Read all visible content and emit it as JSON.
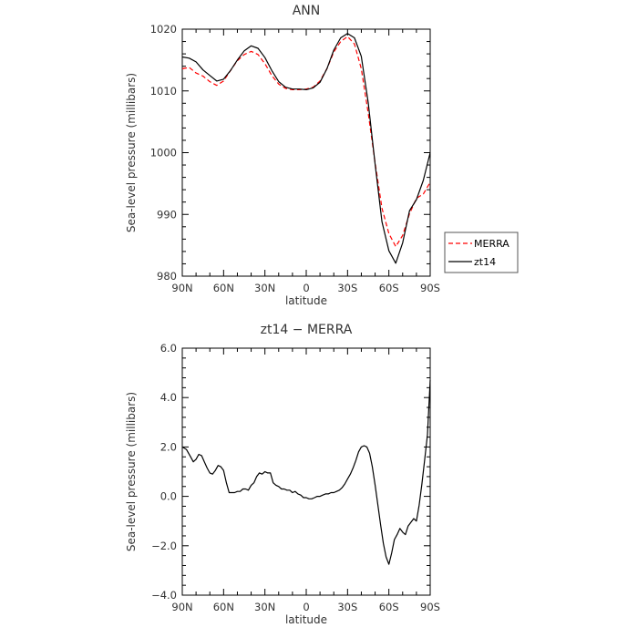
{
  "chart_data": [
    {
      "type": "line",
      "title": "ANN",
      "xlabel": "latitude",
      "ylabel": "Sea-level pressure (millibars)",
      "xlim": [
        90,
        -90
      ],
      "ylim": [
        980,
        1020
      ],
      "x_ticks": [
        "90N",
        "60N",
        "30N",
        "0",
        "30S",
        "60S",
        "90S"
      ],
      "y_ticks": [
        "980",
        "990",
        "1000",
        "1010",
        "1020"
      ],
      "legend": {
        "position": "right",
        "entries": [
          "MERRA",
          "zt14"
        ]
      },
      "series": [
        {
          "name": "MERRA",
          "color": "#ff0000",
          "dash": "dashed",
          "x": [
            90,
            85,
            80,
            75,
            70,
            65,
            60,
            55,
            50,
            45,
            40,
            35,
            30,
            25,
            20,
            15,
            10,
            5,
            0,
            -5,
            -10,
            -15,
            -20,
            -25,
            -30,
            -35,
            -40,
            -45,
            -50,
            -55,
            -60,
            -65,
            -70,
            -75,
            -80,
            -85,
            -90
          ],
          "y": [
            1013.6,
            1013.8,
            1012.9,
            1012.4,
            1011.5,
            1010.9,
            1011.6,
            1013.3,
            1014.9,
            1015.9,
            1016.4,
            1015.9,
            1014.4,
            1012.5,
            1011.1,
            1010.4,
            1010.2,
            1010.2,
            1010.3,
            1010.6,
            1011.6,
            1013.6,
            1016.3,
            1018.0,
            1018.8,
            1017.6,
            1013.6,
            1006.4,
            998.3,
            991.0,
            986.9,
            984.8,
            986.6,
            990.1,
            992.6,
            993.3,
            995.2
          ]
        },
        {
          "name": "zt14",
          "color": "#000000",
          "dash": "solid",
          "x": [
            90,
            85,
            80,
            75,
            70,
            65,
            60,
            55,
            50,
            45,
            40,
            35,
            30,
            25,
            20,
            15,
            10,
            5,
            0,
            -5,
            -10,
            -15,
            -20,
            -25,
            -30,
            -35,
            -40,
            -45,
            -50,
            -55,
            -60,
            -65,
            -70,
            -75,
            -80,
            -85,
            -90
          ],
          "y": [
            1015.5,
            1015.3,
            1014.7,
            1013.4,
            1012.5,
            1011.6,
            1011.9,
            1013.3,
            1015.0,
            1016.5,
            1017.3,
            1016.9,
            1015.4,
            1013.3,
            1011.5,
            1010.6,
            1010.3,
            1010.3,
            1010.2,
            1010.5,
            1011.4,
            1013.6,
            1016.6,
            1018.6,
            1019.3,
            1018.6,
            1015.6,
            1008.1,
            998.1,
            988.8,
            984.1,
            982.1,
            985.4,
            990.6,
            992.4,
            995.5,
            1000.0
          ]
        }
      ]
    },
    {
      "type": "line",
      "title": "zt14 − MERRA",
      "xlabel": "latitude",
      "ylabel": "Sea-level pressure (millibars)",
      "xlim": [
        90,
        -90
      ],
      "ylim": [
        -4.0,
        6.0
      ],
      "x_ticks": [
        "90N",
        "60N",
        "30N",
        "0",
        "30S",
        "60S",
        "90S"
      ],
      "y_ticks": [
        "−4.0",
        "−2.0",
        "0.0",
        "2.0",
        "4.0",
        "6.0"
      ],
      "series": [
        {
          "color": "#000000",
          "dash": "solid",
          "x": [
            90,
            87,
            84,
            82,
            80,
            78,
            76,
            74,
            72,
            70,
            68,
            66,
            64,
            62,
            60,
            58,
            56,
            54,
            52,
            50,
            48,
            46,
            44,
            42,
            40,
            38,
            36,
            34,
            32,
            30,
            28,
            26,
            24,
            22,
            20,
            18,
            16,
            14,
            12,
            10,
            8,
            6,
            4,
            2,
            0,
            -2,
            -4,
            -6,
            -8,
            -10,
            -12,
            -14,
            -16,
            -18,
            -20,
            -22,
            -24,
            -26,
            -28,
            -30,
            -32,
            -34,
            -36,
            -38,
            -40,
            -42,
            -44,
            -46,
            -48,
            -50,
            -52,
            -54,
            -56,
            -58,
            -60,
            -62,
            -64,
            -66,
            -68,
            -70,
            -72,
            -74,
            -76,
            -78,
            -80,
            -82,
            -84,
            -86,
            -88,
            -90
          ],
          "y": [
            2.0,
            1.9,
            1.6,
            1.4,
            1.5,
            1.7,
            1.65,
            1.4,
            1.15,
            0.95,
            0.9,
            1.05,
            1.25,
            1.2,
            1.05,
            0.55,
            0.15,
            0.15,
            0.15,
            0.2,
            0.2,
            0.3,
            0.3,
            0.25,
            0.45,
            0.55,
            0.8,
            0.95,
            0.9,
            1.0,
            0.95,
            0.95,
            0.55,
            0.45,
            0.4,
            0.3,
            0.3,
            0.25,
            0.25,
            0.15,
            0.2,
            0.1,
            0.05,
            -0.05,
            -0.05,
            -0.1,
            -0.1,
            -0.05,
            0.0,
            0.0,
            0.05,
            0.1,
            0.1,
            0.15,
            0.15,
            0.2,
            0.25,
            0.35,
            0.5,
            0.7,
            0.9,
            1.15,
            1.45,
            1.8,
            2.0,
            2.05,
            2.0,
            1.75,
            1.2,
            0.45,
            -0.35,
            -1.15,
            -1.9,
            -2.45,
            -2.75,
            -2.3,
            -1.75,
            -1.55,
            -1.3,
            -1.45,
            -1.55,
            -1.2,
            -1.05,
            -0.9,
            -1.0,
            -0.35,
            0.5,
            1.5,
            2.5,
            4.7
          ]
        }
      ]
    }
  ]
}
